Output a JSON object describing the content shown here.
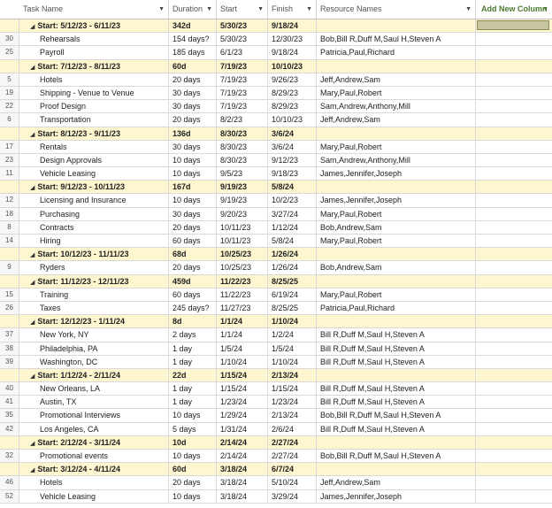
{
  "headers": {
    "task": "Task Name",
    "duration": "Duration",
    "start": "Start",
    "finish": "Finish",
    "resources": "Resource Names",
    "add_column": "Add New Column"
  },
  "rows": [
    {
      "group": true,
      "id": "",
      "name": "Start: 5/12/23 - 6/11/23",
      "duration": "342d",
      "start": "5/30/23",
      "finish": "9/18/24",
      "resources": ""
    },
    {
      "group": false,
      "id": "30",
      "name": "Rehearsals",
      "duration": "154 days?",
      "start": "5/30/23",
      "finish": "12/30/23",
      "resources": "Bob,Bill R,Duff M,Saul H,Steven A"
    },
    {
      "group": false,
      "id": "25",
      "name": "Payroll",
      "duration": "185 days",
      "start": "6/1/23",
      "finish": "9/18/24",
      "resources": "Patricia,Paul,Richard"
    },
    {
      "group": true,
      "id": "",
      "name": "Start: 7/12/23 - 8/11/23",
      "duration": "60d",
      "start": "7/19/23",
      "finish": "10/10/23",
      "resources": ""
    },
    {
      "group": false,
      "id": "5",
      "name": "Hotels",
      "duration": "20 days",
      "start": "7/19/23",
      "finish": "9/26/23",
      "resources": "Jeff,Andrew,Sam"
    },
    {
      "group": false,
      "id": "19",
      "name": "Shipping - Venue to Venue",
      "duration": "30 days",
      "start": "7/19/23",
      "finish": "8/29/23",
      "resources": "Mary,Paul,Robert"
    },
    {
      "group": false,
      "id": "22",
      "name": "Proof Design",
      "duration": "30 days",
      "start": "7/19/23",
      "finish": "8/29/23",
      "resources": "Sam,Andrew,Anthony,Mill"
    },
    {
      "group": false,
      "id": "6",
      "name": "Transportation",
      "duration": "20 days",
      "start": "8/2/23",
      "finish": "10/10/23",
      "resources": "Jeff,Andrew,Sam"
    },
    {
      "group": true,
      "id": "",
      "name": "Start: 8/12/23 - 9/11/23",
      "duration": "136d",
      "start": "8/30/23",
      "finish": "3/6/24",
      "resources": ""
    },
    {
      "group": false,
      "id": "17",
      "name": "Rentals",
      "duration": "30 days",
      "start": "8/30/23",
      "finish": "3/6/24",
      "resources": "Mary,Paul,Robert"
    },
    {
      "group": false,
      "id": "23",
      "name": "Design Approvals",
      "duration": "10 days",
      "start": "8/30/23",
      "finish": "9/12/23",
      "resources": "Sam,Andrew,Anthony,Mill"
    },
    {
      "group": false,
      "id": "11",
      "name": "Vehicle Leasing",
      "duration": "10 days",
      "start": "9/5/23",
      "finish": "9/18/23",
      "resources": "James,Jennifer,Joseph"
    },
    {
      "group": true,
      "id": "",
      "name": "Start: 9/12/23 - 10/11/23",
      "duration": "167d",
      "start": "9/19/23",
      "finish": "5/8/24",
      "resources": ""
    },
    {
      "group": false,
      "id": "12",
      "name": "Licensing and Insurance",
      "duration": "10 days",
      "start": "9/19/23",
      "finish": "10/2/23",
      "resources": "James,Jennifer,Joseph"
    },
    {
      "group": false,
      "id": "18",
      "name": "Purchasing",
      "duration": "30 days",
      "start": "9/20/23",
      "finish": "3/27/24",
      "resources": "Mary,Paul,Robert"
    },
    {
      "group": false,
      "id": "8",
      "name": "Contracts",
      "duration": "20 days",
      "start": "10/11/23",
      "finish": "1/12/24",
      "resources": "Bob,Andrew,Sam"
    },
    {
      "group": false,
      "id": "14",
      "name": "Hiring",
      "duration": "60 days",
      "start": "10/11/23",
      "finish": "5/8/24",
      "resources": "Mary,Paul,Robert"
    },
    {
      "group": true,
      "id": "",
      "name": "Start: 10/12/23 - 11/11/23",
      "duration": "68d",
      "start": "10/25/23",
      "finish": "1/26/24",
      "resources": ""
    },
    {
      "group": false,
      "id": "9",
      "name": "Ryders",
      "duration": "20 days",
      "start": "10/25/23",
      "finish": "1/26/24",
      "resources": "Bob,Andrew,Sam"
    },
    {
      "group": true,
      "id": "",
      "name": "Start: 11/12/23 - 12/11/23",
      "duration": "459d",
      "start": "11/22/23",
      "finish": "8/25/25",
      "resources": ""
    },
    {
      "group": false,
      "id": "15",
      "name": "Training",
      "duration": "60 days",
      "start": "11/22/23",
      "finish": "6/19/24",
      "resources": "Mary,Paul,Robert"
    },
    {
      "group": false,
      "id": "26",
      "name": "Taxes",
      "duration": "245 days?",
      "start": "11/27/23",
      "finish": "8/25/25",
      "resources": "Patricia,Paul,Richard"
    },
    {
      "group": true,
      "id": "",
      "name": "Start: 12/12/23 - 1/11/24",
      "duration": "8d",
      "start": "1/1/24",
      "finish": "1/10/24",
      "resources": ""
    },
    {
      "group": false,
      "id": "37",
      "name": "New York, NY",
      "duration": "2 days",
      "start": "1/1/24",
      "finish": "1/2/24",
      "resources": "Bill R,Duff M,Saul H,Steven A"
    },
    {
      "group": false,
      "id": "38",
      "name": "Philadelphia, PA",
      "duration": "1 day",
      "start": "1/5/24",
      "finish": "1/5/24",
      "resources": "Bill R,Duff M,Saul H,Steven A"
    },
    {
      "group": false,
      "id": "39",
      "name": "Washington, DC",
      "duration": "1 day",
      "start": "1/10/24",
      "finish": "1/10/24",
      "resources": "Bill R,Duff M,Saul H,Steven A"
    },
    {
      "group": true,
      "id": "",
      "name": "Start: 1/12/24 - 2/11/24",
      "duration": "22d",
      "start": "1/15/24",
      "finish": "2/13/24",
      "resources": ""
    },
    {
      "group": false,
      "id": "40",
      "name": "New Orleans, LA",
      "duration": "1 day",
      "start": "1/15/24",
      "finish": "1/15/24",
      "resources": "Bill R,Duff M,Saul H,Steven A"
    },
    {
      "group": false,
      "id": "41",
      "name": "Austin, TX",
      "duration": "1 day",
      "start": "1/23/24",
      "finish": "1/23/24",
      "resources": "Bill R,Duff M,Saul H,Steven A"
    },
    {
      "group": false,
      "id": "35",
      "name": "Promotional Interviews",
      "duration": "10 days",
      "start": "1/29/24",
      "finish": "2/13/24",
      "resources": "Bob,Bill R,Duff M,Saul H,Steven A"
    },
    {
      "group": false,
      "id": "42",
      "name": "Los Angeles, CA",
      "duration": "5 days",
      "start": "1/31/24",
      "finish": "2/6/24",
      "resources": "Bill R,Duff M,Saul H,Steven A"
    },
    {
      "group": true,
      "id": "",
      "name": "Start: 2/12/24 - 3/11/24",
      "duration": "10d",
      "start": "2/14/24",
      "finish": "2/27/24",
      "resources": ""
    },
    {
      "group": false,
      "id": "32",
      "name": "Promotional events",
      "duration": "10 days",
      "start": "2/14/24",
      "finish": "2/27/24",
      "resources": "Bob,Bill R,Duff M,Saul H,Steven A"
    },
    {
      "group": true,
      "id": "",
      "name": "Start: 3/12/24 - 4/11/24",
      "duration": "60d",
      "start": "3/18/24",
      "finish": "6/7/24",
      "resources": ""
    },
    {
      "group": false,
      "id": "46",
      "name": "Hotels",
      "duration": "20 days",
      "start": "3/18/24",
      "finish": "5/10/24",
      "resources": "Jeff,Andrew,Sam"
    },
    {
      "group": false,
      "id": "52",
      "name": "Vehicle Leasing",
      "duration": "10 days",
      "start": "3/18/24",
      "finish": "3/29/24",
      "resources": "James,Jennifer,Joseph"
    }
  ]
}
